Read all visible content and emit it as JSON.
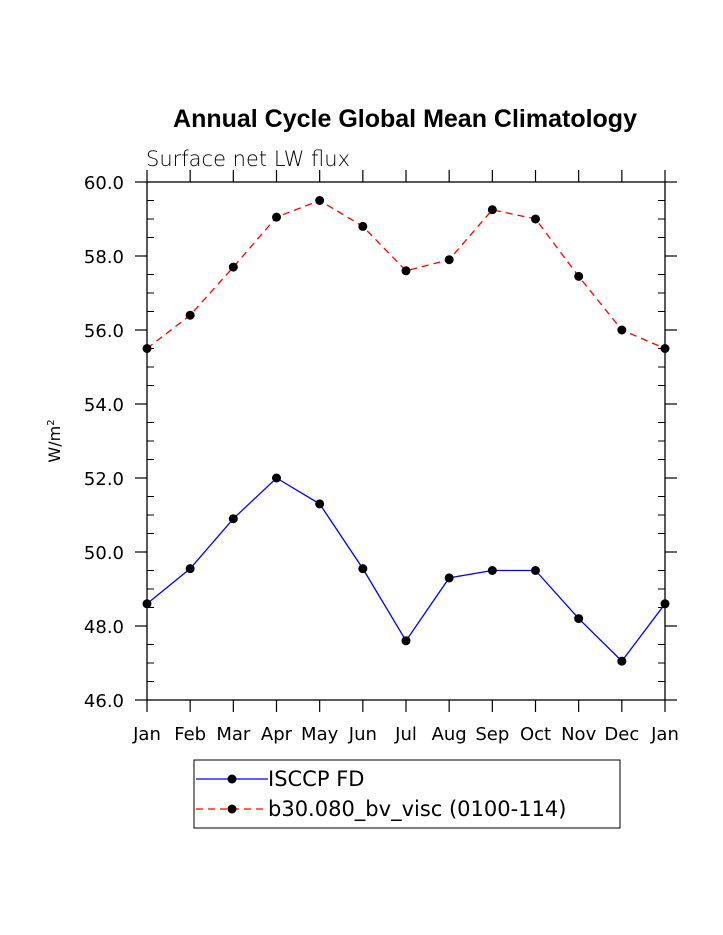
{
  "chart_data": {
    "type": "line",
    "title": "Annual Cycle Global Mean Climatology",
    "subtitle": "Surface net LW flux",
    "ylabel": "W/m",
    "ylabel_superscript": "2",
    "xlabel": "",
    "categories": [
      "Jan",
      "Feb",
      "Mar",
      "Apr",
      "May",
      "Jun",
      "Jul",
      "Aug",
      "Sep",
      "Oct",
      "Nov",
      "Dec",
      "Jan"
    ],
    "ylim": [
      46.0,
      60.0
    ],
    "yticks": [
      "46.0",
      "48.0",
      "50.0",
      "52.0",
      "54.0",
      "56.0",
      "58.0",
      "60.0"
    ],
    "series": [
      {
        "name": "ISCCP FD",
        "color": "#0000ff",
        "dash": "solid",
        "values": [
          48.6,
          49.55,
          50.9,
          52.0,
          51.3,
          49.55,
          47.6,
          49.3,
          49.5,
          49.5,
          48.2,
          47.05,
          48.6
        ]
      },
      {
        "name": "b30.080_bv_visc (0100-114)",
        "color": "#ff0000",
        "dash": "dashed",
        "values": [
          55.5,
          56.4,
          57.7,
          59.05,
          59.5,
          58.8,
          57.6,
          57.9,
          59.25,
          59.0,
          57.45,
          56.0,
          55.5
        ]
      }
    ],
    "legend_position": "bottom-center"
  }
}
